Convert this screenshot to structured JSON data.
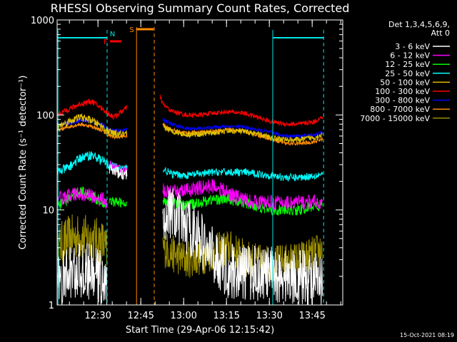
{
  "chart_data": {
    "type": "line",
    "title": "RHESSI Observing Summary Count Rates, Corrected",
    "xlabel": "Start Time (29-Apr-06 12:15:42)",
    "ylabel": "Corrected Count Rate (s⁻¹ detector⁻¹)",
    "yscale": "log",
    "ylim": [
      1,
      1000
    ],
    "xlim_minutes": [
      0,
      100
    ],
    "yticks": [
      "1",
      "10",
      "100",
      "1000"
    ],
    "xticks": [
      {
        "label": "12:30",
        "t": 14.3
      },
      {
        "label": "12:45",
        "t": 29.3
      },
      {
        "label": "13:00",
        "t": 44.3
      },
      {
        "label": "13:15",
        "t": 59.3
      },
      {
        "label": "13:30",
        "t": 74.3
      },
      {
        "label": "13:45",
        "t": 89.3
      }
    ],
    "legend_header": [
      "Det 1,3,4,5,6,9,",
      "Att 0"
    ],
    "legend_position": "top-right",
    "timestamp": "15-Oct-2021 08:19",
    "flags": [
      {
        "label": "N",
        "color": "#00e5e5",
        "t0": 18.2,
        "t1": 19.0
      },
      {
        "label": "F",
        "color": "#ff0000",
        "t0": 18.5,
        "t1": 22.5
      },
      {
        "label": "S",
        "color": "#ff8c00",
        "t0": 27.8,
        "t1": 33.8
      }
    ],
    "night_markers": [
      {
        "t": 0.3,
        "color": "#00e5e5",
        "dashed": false
      },
      {
        "t": 17.5,
        "color": "#00e5e5",
        "dashed": true
      },
      {
        "t": 75.5,
        "color": "#00e5e5",
        "dashed": false
      },
      {
        "t": 93.3,
        "color": "#00e5e5",
        "dashed": true
      }
    ],
    "night_bars": [
      {
        "t0": 0,
        "t1": 17.5,
        "y": 650
      },
      {
        "t0": 75.5,
        "t1": 93.3,
        "y": 650
      }
    ],
    "saa_markers": [
      {
        "t": 27.8,
        "color": "#ff8c00",
        "dashed": false
      },
      {
        "t": 34.0,
        "color": "#ff8c00",
        "dashed": true
      }
    ],
    "series": [
      {
        "name": "3 - 6 keV",
        "color": "#ffffff",
        "segments": [
          {
            "t": [
              0,
              4,
              8,
              12,
              16,
              17.5
            ],
            "y": [
              1.6,
              2.2,
              2.3,
              2.2,
              1.9,
              1.4
            ],
            "noise": 0.3
          },
          {
            "t": [
              18.2,
              20,
              22,
              24.5
            ],
            "y": [
              27,
              26,
              24,
              23
            ],
            "noise": 0.06
          },
          {
            "t": [
              37,
              40,
              44,
              48,
              52,
              56,
              60,
              65,
              70,
              75,
              80,
              85,
              90,
              93
            ],
            "y": [
              10,
              9,
              7,
              6,
              4,
              3,
              2.3,
              2.2,
              2.2,
              2.1,
              2,
              2,
              1.8,
              1.6
            ],
            "noise": 0.3
          }
        ]
      },
      {
        "name": "6 - 12 keV",
        "color": "#ff00ff",
        "segments": [
          {
            "t": [
              0,
              4,
              8,
              12,
              16,
              17.5
            ],
            "y": [
              13,
              14,
              15,
              14,
              13,
              12
            ],
            "noise": 0.08
          },
          {
            "t": [
              18.2,
              20,
              22,
              24.5
            ],
            "y": [
              30,
              28,
              27,
              25
            ],
            "noise": 0.05
          },
          {
            "t": [
              37,
              40,
              45,
              50,
              55,
              60,
              65,
              70,
              75,
              80,
              85,
              90,
              93
            ],
            "y": [
              16,
              15,
              16,
              17,
              18,
              15,
              13,
              12,
              12,
              12,
              12,
              12,
              12
            ],
            "noise": 0.08
          }
        ]
      },
      {
        "name": "12 - 25 keV",
        "color": "#00ff00",
        "segments": [
          {
            "t": [
              0,
              4,
              8,
              12,
              16,
              17.5
            ],
            "y": [
              11,
              13,
              16,
              14,
              12,
              11
            ],
            "noise": 0.06
          },
          {
            "t": [
              18.2,
              20,
              22,
              24.5
            ],
            "y": [
              13,
              12,
              12,
              11
            ],
            "noise": 0.05
          },
          {
            "t": [
              37,
              40,
              45,
              50,
              55,
              60,
              65,
              70,
              75,
              80,
              85,
              90,
              93
            ],
            "y": [
              13,
              12,
              11,
              12,
              13,
              13,
              12,
              11,
              10,
              10,
              10,
              11,
              11
            ],
            "noise": 0.06
          }
        ]
      },
      {
        "name": "25 - 50 keV",
        "color": "#00ffff",
        "segments": [
          {
            "t": [
              0,
              4,
              8,
              12,
              16,
              17.5,
              20,
              24.5
            ],
            "y": [
              25,
              28,
              35,
              38,
              33,
              30,
              28,
              27
            ],
            "noise": 0.05
          },
          {
            "t": [
              37,
              40,
              45,
              50,
              55,
              60,
              65,
              70,
              75,
              80,
              85,
              90,
              93
            ],
            "y": [
              27,
              24,
              23,
              24,
              25,
              25,
              25,
              24,
              23,
              22,
              22,
              23,
              24
            ],
            "noise": 0.04
          }
        ]
      },
      {
        "name": "50 - 100 keV",
        "color": "#e0c000",
        "segments": [
          {
            "t": [
              0,
              4,
              8,
              12,
              16,
              17.5,
              20,
              24.5
            ],
            "y": [
              75,
              85,
              95,
              88,
              75,
              68,
              63,
              62
            ],
            "noise": 0.04
          },
          {
            "t": [
              37,
              40,
              45,
              50,
              55,
              60,
              65,
              70,
              75,
              80,
              85,
              90,
              93
            ],
            "y": [
              75,
              68,
              62,
              63,
              65,
              68,
              67,
              63,
              58,
              55,
              55,
              58,
              62
            ],
            "noise": 0.03
          }
        ]
      },
      {
        "name": "100 - 300 keV",
        "color": "#ff0000",
        "segments": [
          {
            "t": [
              0,
              4,
              8,
              12,
              16,
              17.5,
              20,
              24.5
            ],
            "y": [
              100,
              115,
              130,
              140,
              115,
              105,
              95,
              120
            ],
            "noise": 0.03
          },
          {
            "t": [
              36,
              37,
              40,
              45,
              50,
              55,
              60,
              65,
              70,
              75,
              80,
              85,
              90,
              93
            ],
            "y": [
              160,
              130,
              110,
              100,
              100,
              105,
              108,
              105,
              95,
              85,
              80,
              80,
              85,
              95
            ],
            "noise": 0.025
          }
        ]
      },
      {
        "name": "300 - 800 keV",
        "color": "#0000ff",
        "segments": [
          {
            "t": [
              0,
              4,
              8,
              12,
              16,
              17.5,
              20,
              24.5
            ],
            "y": [
              78,
              82,
              88,
              85,
              78,
              72,
              68,
              70
            ],
            "noise": 0.02
          },
          {
            "t": [
              37,
              40,
              45,
              50,
              55,
              60,
              65,
              70,
              75,
              80,
              85,
              90,
              93
            ],
            "y": [
              90,
              80,
              72,
              72,
              74,
              76,
              75,
              70,
              65,
              60,
              60,
              62,
              65
            ],
            "noise": 0.02
          }
        ]
      },
      {
        "name": "800 - 7000 keV",
        "color": "#ff8c00",
        "segments": [
          {
            "t": [
              0,
              4,
              8,
              12,
              16,
              17.5,
              20,
              24.5
            ],
            "y": [
              68,
              75,
              80,
              76,
              68,
              62,
              58,
              60
            ],
            "noise": 0.02
          },
          {
            "t": [
              37,
              40,
              45,
              50,
              55,
              60,
              65,
              70,
              75,
              80,
              85,
              90,
              93
            ],
            "y": [
              80,
              70,
              65,
              66,
              68,
              70,
              68,
              62,
              55,
              50,
              50,
              52,
              56
            ],
            "noise": 0.02
          }
        ]
      },
      {
        "name": "7000 - 15000 keV",
        "color": "#9a8c00",
        "segments": [
          {
            "t": [
              0,
              4,
              8,
              12,
              16,
              17.5
            ],
            "y": [
              4,
              5,
              5.2,
              5,
              4.5,
              3.5
            ],
            "noise": 0.25
          },
          {
            "t": [
              37,
              40,
              45,
              50,
              55,
              60,
              65,
              70,
              75,
              80,
              85,
              90,
              93
            ],
            "y": [
              4,
              3.5,
              3,
              3.2,
              3.6,
              4,
              3.2,
              2.8,
              2.7,
              2.8,
              3,
              3.4,
              4
            ],
            "noise": 0.2
          }
        ]
      }
    ]
  }
}
